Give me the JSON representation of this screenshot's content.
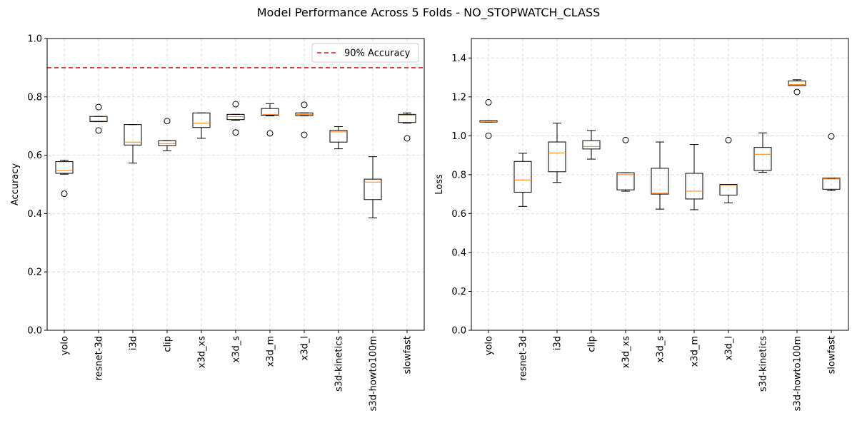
{
  "figure": {
    "title": "Model Performance Across 5 Folds - NO_STOPWATCH_CLASS"
  },
  "chart_data": [
    {
      "type": "box",
      "title": "",
      "xlabel": "",
      "ylabel": "Accuracy",
      "ylim": [
        0,
        1.0
      ],
      "yticks": [
        "0.0",
        "0.2",
        "0.4",
        "0.6",
        "0.8",
        "1.0"
      ],
      "yticks_values": [
        0,
        0.2,
        0.4,
        0.6,
        0.8,
        1.0
      ],
      "grid": true,
      "legend": {
        "placement": "upper-right",
        "entries": [
          "90% Accuracy"
        ]
      },
      "reference_line": {
        "label": "90% Accuracy",
        "y": 0.9,
        "color": "#e41a1c",
        "style": "dashed"
      },
      "categories": [
        "yolo",
        "resnet-3d",
        "i3d",
        "clip",
        "x3d_xs",
        "x3d_s",
        "x3d_m",
        "x3d_l",
        "s3d-kinetics",
        "s3d-howto100m",
        "slowfast"
      ],
      "boxes": [
        {
          "whislo": 0.535,
          "q1": 0.538,
          "med": 0.548,
          "q3": 0.578,
          "whishi": 0.583,
          "fliers": [
            0.468
          ]
        },
        {
          "whislo": 0.715,
          "q1": 0.715,
          "med": 0.718,
          "q3": 0.733,
          "whishi": 0.733,
          "fliers": [
            0.685,
            0.765
          ]
        },
        {
          "whislo": 0.573,
          "q1": 0.635,
          "med": 0.645,
          "q3": 0.705,
          "whishi": 0.705,
          "fliers": []
        },
        {
          "whislo": 0.615,
          "q1": 0.633,
          "med": 0.64,
          "q3": 0.65,
          "whishi": 0.65,
          "fliers": [
            0.717
          ]
        },
        {
          "whislo": 0.658,
          "q1": 0.695,
          "med": 0.71,
          "q3": 0.745,
          "whishi": 0.745,
          "fliers": []
        },
        {
          "whislo": 0.72,
          "q1": 0.722,
          "med": 0.732,
          "q3": 0.74,
          "whishi": 0.74,
          "fliers": [
            0.678,
            0.775
          ]
        },
        {
          "whislo": 0.735,
          "q1": 0.737,
          "med": 0.74,
          "q3": 0.76,
          "whishi": 0.777,
          "fliers": [
            0.675
          ]
        },
        {
          "whislo": 0.735,
          "q1": 0.736,
          "med": 0.74,
          "q3": 0.745,
          "whishi": 0.745,
          "fliers": [
            0.67,
            0.773
          ]
        },
        {
          "whislo": 0.622,
          "q1": 0.645,
          "med": 0.68,
          "q3": 0.685,
          "whishi": 0.698,
          "fliers": []
        },
        {
          "whislo": 0.385,
          "q1": 0.448,
          "med": 0.508,
          "q3": 0.518,
          "whishi": 0.595,
          "fliers": []
        },
        {
          "whislo": 0.71,
          "q1": 0.712,
          "med": 0.737,
          "q3": 0.74,
          "whishi": 0.745,
          "fliers": [
            0.658
          ]
        }
      ],
      "colors": {
        "box": "#000000",
        "median": "#ff7f0e",
        "grid": "#d3d3d3"
      }
    },
    {
      "type": "box",
      "title": "",
      "xlabel": "",
      "ylabel": "Loss",
      "ylim": [
        0,
        1.5
      ],
      "yticks": [
        "0.0",
        "0.2",
        "0.4",
        "0.6",
        "0.8",
        "1.0",
        "1.2",
        "1.4"
      ],
      "yticks_values": [
        0,
        0.2,
        0.4,
        0.6,
        0.8,
        1.0,
        1.2,
        1.4
      ],
      "grid": true,
      "categories": [
        "yolo",
        "resnet-3d",
        "i3d",
        "clip",
        "x3d_xs",
        "x3d_s",
        "x3d_m",
        "x3d_l",
        "s3d-kinetics",
        "s3d-howto100m",
        "slowfast"
      ],
      "boxes": [
        {
          "whislo": 1.07,
          "q1": 1.07,
          "med": 1.072,
          "q3": 1.078,
          "whishi": 1.078,
          "fliers": [
            1.0,
            1.172
          ]
        },
        {
          "whislo": 0.637,
          "q1": 0.71,
          "med": 0.773,
          "q3": 0.868,
          "whishi": 0.91,
          "fliers": []
        },
        {
          "whislo": 0.76,
          "q1": 0.815,
          "med": 0.912,
          "q3": 0.968,
          "whishi": 1.065,
          "fliers": []
        },
        {
          "whislo": 0.88,
          "q1": 0.932,
          "med": 0.945,
          "q3": 0.975,
          "whishi": 1.027,
          "fliers": []
        },
        {
          "whislo": 0.715,
          "q1": 0.722,
          "med": 0.8,
          "q3": 0.81,
          "whishi": 0.81,
          "fliers": [
            0.978
          ]
        },
        {
          "whislo": 0.623,
          "q1": 0.7,
          "med": 0.705,
          "q3": 0.833,
          "whishi": 0.968,
          "fliers": []
        },
        {
          "whislo": 0.62,
          "q1": 0.675,
          "med": 0.715,
          "q3": 0.807,
          "whishi": 0.955,
          "fliers": []
        },
        {
          "whislo": 0.655,
          "q1": 0.695,
          "med": 0.745,
          "q3": 0.75,
          "whishi": 0.75,
          "fliers": [
            0.978
          ]
        },
        {
          "whislo": 0.812,
          "q1": 0.822,
          "med": 0.905,
          "q3": 0.94,
          "whishi": 1.015,
          "fliers": []
        },
        {
          "whislo": 1.258,
          "q1": 1.258,
          "med": 1.263,
          "q3": 1.282,
          "whishi": 1.288,
          "fliers": [
            1.225
          ]
        },
        {
          "whislo": 0.718,
          "q1": 0.725,
          "med": 0.778,
          "q3": 0.782,
          "whishi": 0.782,
          "fliers": [
            0.997
          ]
        }
      ],
      "colors": {
        "box": "#000000",
        "median": "#ff7f0e",
        "grid": "#d3d3d3"
      }
    }
  ]
}
